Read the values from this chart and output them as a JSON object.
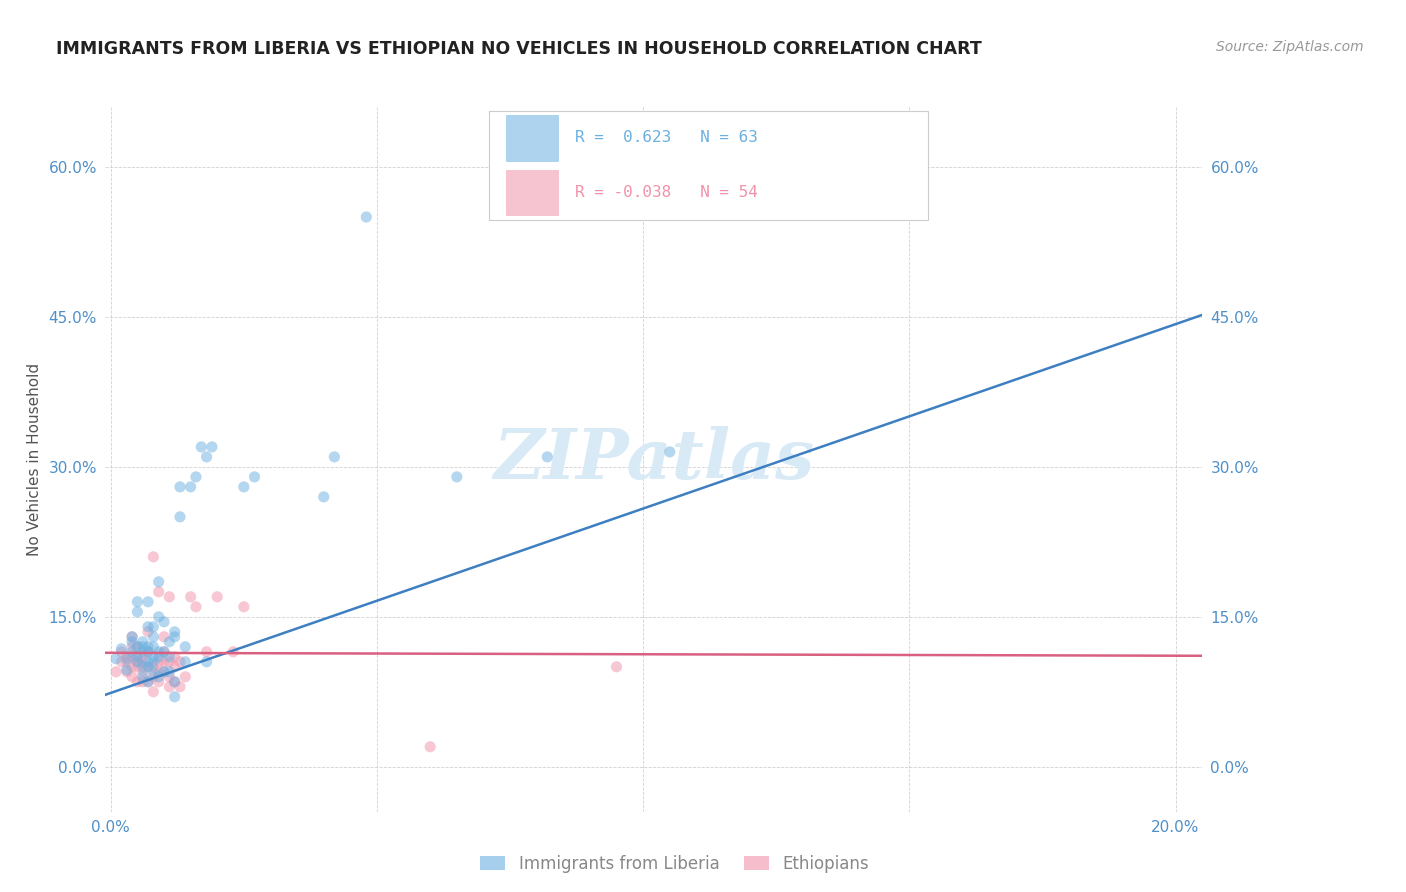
{
  "title": "IMMIGRANTS FROM LIBERIA VS ETHIOPIAN NO VEHICLES IN HOUSEHOLD CORRELATION CHART",
  "source": "Source: ZipAtlas.com",
  "ylabel": "No Vehicles in Household",
  "xlim": [
    -0.001,
    0.205
  ],
  "ylim": [
    -0.045,
    0.66
  ],
  "ytick_positions": [
    0.0,
    0.15,
    0.3,
    0.45,
    0.6
  ],
  "ytick_labels": [
    "0.0%",
    "15.0%",
    "30.0%",
    "45.0%",
    "60.0%"
  ],
  "xtick_positions": [
    0.0,
    0.05,
    0.1,
    0.15,
    0.2
  ],
  "xtick_labels": [
    "0.0%",
    "",
    "",
    "",
    "20.0%"
  ],
  "legend1_entries": [
    {
      "label": "R =  0.623   N = 63",
      "color": "#6ab0e0"
    },
    {
      "label": "R = -0.038   N = 54",
      "color": "#f093aa"
    }
  ],
  "legend2_labels": [
    "Immigrants from Liberia",
    "Ethiopians"
  ],
  "watermark": "ZIPatlas",
  "blue_scatter": [
    [
      0.001,
      0.108
    ],
    [
      0.002,
      0.118
    ],
    [
      0.003,
      0.097
    ],
    [
      0.003,
      0.108
    ],
    [
      0.004,
      0.115
    ],
    [
      0.004,
      0.125
    ],
    [
      0.004,
      0.13
    ],
    [
      0.005,
      0.105
    ],
    [
      0.005,
      0.11
    ],
    [
      0.005,
      0.12
    ],
    [
      0.005,
      0.155
    ],
    [
      0.005,
      0.165
    ],
    [
      0.006,
      0.09
    ],
    [
      0.006,
      0.1
    ],
    [
      0.006,
      0.115
    ],
    [
      0.006,
      0.12
    ],
    [
      0.006,
      0.125
    ],
    [
      0.007,
      0.085
    ],
    [
      0.007,
      0.1
    ],
    [
      0.007,
      0.105
    ],
    [
      0.007,
      0.115
    ],
    [
      0.007,
      0.12
    ],
    [
      0.007,
      0.14
    ],
    [
      0.007,
      0.165
    ],
    [
      0.008,
      0.095
    ],
    [
      0.008,
      0.105
    ],
    [
      0.008,
      0.11
    ],
    [
      0.008,
      0.12
    ],
    [
      0.008,
      0.13
    ],
    [
      0.008,
      0.14
    ],
    [
      0.009,
      0.09
    ],
    [
      0.009,
      0.11
    ],
    [
      0.009,
      0.115
    ],
    [
      0.009,
      0.15
    ],
    [
      0.009,
      0.185
    ],
    [
      0.01,
      0.095
    ],
    [
      0.01,
      0.115
    ],
    [
      0.01,
      0.145
    ],
    [
      0.011,
      0.095
    ],
    [
      0.011,
      0.11
    ],
    [
      0.011,
      0.125
    ],
    [
      0.012,
      0.07
    ],
    [
      0.012,
      0.085
    ],
    [
      0.012,
      0.13
    ],
    [
      0.012,
      0.135
    ],
    [
      0.013,
      0.25
    ],
    [
      0.013,
      0.28
    ],
    [
      0.014,
      0.105
    ],
    [
      0.014,
      0.12
    ],
    [
      0.015,
      0.28
    ],
    [
      0.016,
      0.29
    ],
    [
      0.017,
      0.32
    ],
    [
      0.018,
      0.105
    ],
    [
      0.018,
      0.31
    ],
    [
      0.019,
      0.32
    ],
    [
      0.025,
      0.28
    ],
    [
      0.027,
      0.29
    ],
    [
      0.04,
      0.27
    ],
    [
      0.042,
      0.31
    ],
    [
      0.048,
      0.55
    ],
    [
      0.065,
      0.29
    ],
    [
      0.082,
      0.31
    ],
    [
      0.105,
      0.315
    ]
  ],
  "pink_scatter": [
    [
      0.001,
      0.095
    ],
    [
      0.002,
      0.105
    ],
    [
      0.002,
      0.115
    ],
    [
      0.003,
      0.095
    ],
    [
      0.003,
      0.105
    ],
    [
      0.003,
      0.11
    ],
    [
      0.004,
      0.09
    ],
    [
      0.004,
      0.1
    ],
    [
      0.004,
      0.11
    ],
    [
      0.004,
      0.12
    ],
    [
      0.004,
      0.13
    ],
    [
      0.005,
      0.085
    ],
    [
      0.005,
      0.1
    ],
    [
      0.005,
      0.105
    ],
    [
      0.005,
      0.11
    ],
    [
      0.005,
      0.12
    ],
    [
      0.006,
      0.085
    ],
    [
      0.006,
      0.095
    ],
    [
      0.006,
      0.105
    ],
    [
      0.006,
      0.11
    ],
    [
      0.007,
      0.085
    ],
    [
      0.007,
      0.1
    ],
    [
      0.007,
      0.115
    ],
    [
      0.007,
      0.135
    ],
    [
      0.008,
      0.075
    ],
    [
      0.008,
      0.09
    ],
    [
      0.008,
      0.1
    ],
    [
      0.008,
      0.21
    ],
    [
      0.009,
      0.085
    ],
    [
      0.009,
      0.095
    ],
    [
      0.009,
      0.105
    ],
    [
      0.009,
      0.175
    ],
    [
      0.01,
      0.095
    ],
    [
      0.01,
      0.105
    ],
    [
      0.01,
      0.115
    ],
    [
      0.01,
      0.13
    ],
    [
      0.011,
      0.08
    ],
    [
      0.011,
      0.09
    ],
    [
      0.011,
      0.105
    ],
    [
      0.011,
      0.17
    ],
    [
      0.012,
      0.085
    ],
    [
      0.012,
      0.1
    ],
    [
      0.012,
      0.11
    ],
    [
      0.013,
      0.08
    ],
    [
      0.013,
      0.105
    ],
    [
      0.014,
      0.09
    ],
    [
      0.015,
      0.17
    ],
    [
      0.016,
      0.16
    ],
    [
      0.018,
      0.115
    ],
    [
      0.02,
      0.17
    ],
    [
      0.023,
      0.115
    ],
    [
      0.025,
      0.16
    ],
    [
      0.06,
      0.02
    ],
    [
      0.095,
      0.1
    ]
  ],
  "blue_line_x": [
    -0.001,
    0.205
  ],
  "blue_line_y": [
    0.072,
    0.452
  ],
  "pink_line_x": [
    -0.001,
    0.205
  ],
  "pink_line_y": [
    0.114,
    0.111
  ],
  "blue_color": "#6ab0e0",
  "pink_color": "#f093aa",
  "blue_line_color": "#3d7fc1",
  "pink_line_color": "#d96080",
  "grid_color": "#cccccc",
  "title_color": "#222222",
  "axis_tick_color": "#5090c8",
  "right_tick_color": "#5090c8",
  "ylabel_color": "#555555",
  "background_color": "#ffffff",
  "title_fontsize": 12.5,
  "source_fontsize": 10,
  "watermark_fontsize": 50,
  "watermark_color": "#d8eaf6",
  "scatter_size": 65,
  "scatter_alpha": 0.5,
  "line_width": 1.8,
  "legend_box_color": "#ffffff",
  "legend_box_edge": "#cccccc"
}
